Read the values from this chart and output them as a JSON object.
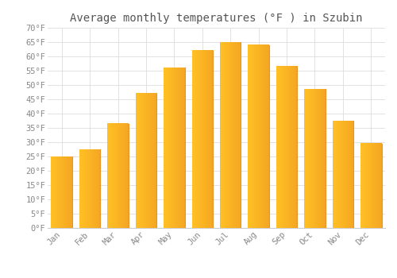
{
  "title": "Average monthly temperatures (°F ) in Szubin",
  "months": [
    "Jan",
    "Feb",
    "Mar",
    "Apr",
    "May",
    "Jun",
    "Jul",
    "Aug",
    "Sep",
    "Oct",
    "Nov",
    "Dec"
  ],
  "values": [
    25,
    27.5,
    36.5,
    47,
    56,
    62,
    65,
    64,
    56.5,
    48.5,
    37.5,
    29.5
  ],
  "bar_color_left": "#FFC125",
  "bar_color_right": "#F5A623",
  "ylim": [
    0,
    70
  ],
  "yticks": [
    0,
    5,
    10,
    15,
    20,
    25,
    30,
    35,
    40,
    45,
    50,
    55,
    60,
    65,
    70
  ],
  "background_color": "#FFFFFF",
  "grid_color": "#DDDDDD",
  "title_fontsize": 10,
  "tick_fontsize": 7.5,
  "title_color": "#555555",
  "tick_color": "#888888"
}
